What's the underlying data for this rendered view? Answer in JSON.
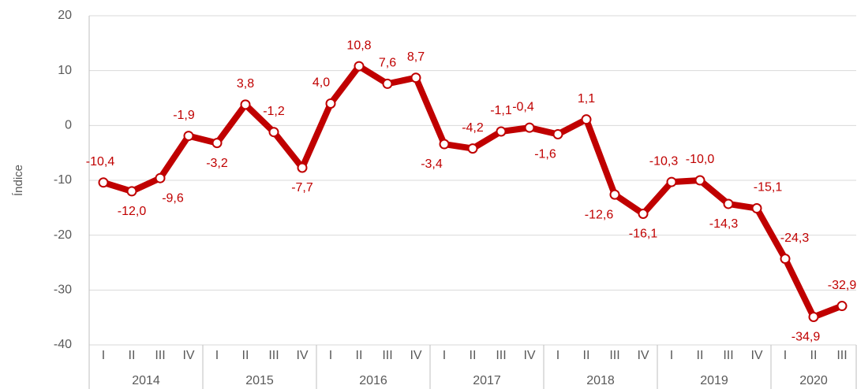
{
  "chart_data": {
    "type": "line",
    "y_label": "Índice",
    "category_groups": [
      {
        "label": "2014",
        "categories": [
          "I",
          "II",
          "III",
          "IV"
        ]
      },
      {
        "label": "2015",
        "categories": [
          "I",
          "II",
          "III",
          "IV"
        ]
      },
      {
        "label": "2016",
        "categories": [
          "I",
          "II",
          "III",
          "IV"
        ]
      },
      {
        "label": "2017",
        "categories": [
          "I",
          "II",
          "III",
          "IV"
        ]
      },
      {
        "label": "2018",
        "categories": [
          "I",
          "II",
          "III",
          "IV"
        ]
      },
      {
        "label": "2019",
        "categories": [
          "I",
          "II",
          "III",
          "IV"
        ]
      },
      {
        "label": "2020",
        "categories": [
          "I",
          "II",
          "III"
        ]
      }
    ],
    "values": [
      -10.4,
      -12.0,
      -9.6,
      -1.9,
      -3.2,
      3.8,
      -1.2,
      -7.7,
      4.0,
      10.8,
      7.6,
      8.7,
      -3.4,
      -4.2,
      -1.1,
      -0.4,
      -1.6,
      1.1,
      -12.6,
      -16.1,
      -10.3,
      -10.0,
      -14.3,
      -15.1,
      -24.3,
      -34.9,
      -32.9
    ],
    "value_labels": [
      "-10,4",
      "-12,0",
      "-9,6",
      "-1,9",
      "-3,2",
      "3,8",
      "-1,2",
      "-7,7",
      "4,0",
      "10,8",
      "7,6",
      "8,7",
      "-3,4",
      "-4,2",
      "-1,1",
      "-0,4",
      "-1,6",
      "1,1",
      "-12,6",
      "-16,1",
      "-10,3",
      "-10,0",
      "-14,3",
      "-15,1",
      "-24,3",
      "-34,9",
      "-32,9"
    ],
    "color": "#c00000",
    "ylim": [
      -40,
      20
    ],
    "yticks": [
      -40,
      -30,
      -20,
      -10,
      0,
      10,
      20
    ],
    "grid": true
  }
}
